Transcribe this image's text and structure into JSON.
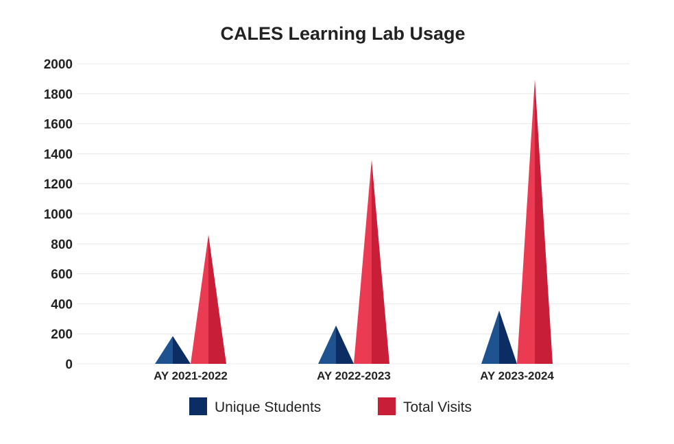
{
  "chart_data": {
    "type": "bar",
    "title": "CALES Learning Lab Usage",
    "xlabel": "",
    "ylabel": "",
    "categories": [
      "AY 2021-2022",
      "AY 2022-2023",
      "AY 2023-2024"
    ],
    "series": [
      {
        "name": "Unique Students",
        "values": [
          185,
          255,
          355
        ],
        "color": "#0b2d63",
        "light_color": "#1f5390"
      },
      {
        "name": "Total Visits",
        "values": [
          860,
          1360,
          1895
        ],
        "color": "#c81e38",
        "light_color": "#ea3b53"
      }
    ],
    "ylim": [
      0,
      2000
    ],
    "yticks": [
      0,
      200,
      400,
      600,
      800,
      1000,
      1200,
      1400,
      1600,
      1800,
      2000
    ],
    "grid": true,
    "legend_position": "bottom",
    "mark_shape": "cone"
  }
}
